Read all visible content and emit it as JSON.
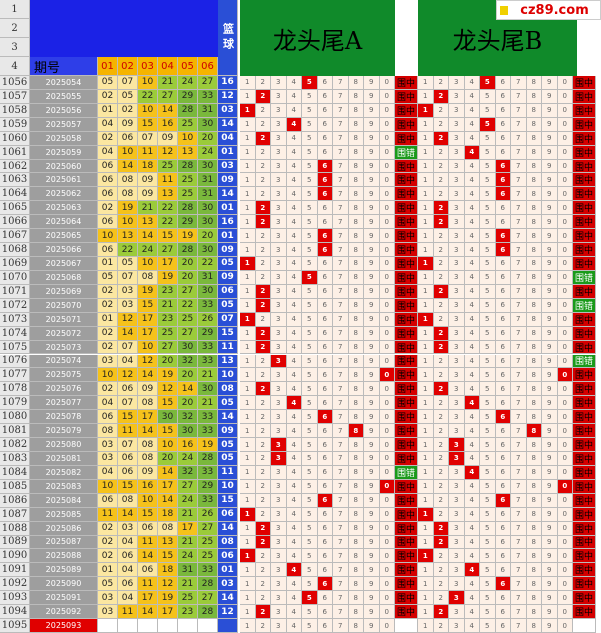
{
  "logo": "cz89.com",
  "top_rows": [
    "1",
    "2",
    "3",
    "4"
  ],
  "header": {
    "period_label": "期号",
    "number_labels": [
      "01",
      "02",
      "03",
      "04",
      "05",
      "06"
    ],
    "blue_label": "篮球",
    "section_a": "龙头尾A",
    "section_b": "龙头尾B"
  },
  "digits": [
    "1",
    "2",
    "3",
    "4",
    "5",
    "6",
    "7",
    "8",
    "9",
    "0"
  ],
  "rows": [
    [
      "1056",
      "2025054",
      [
        "05",
        "07",
        "10",
        "21",
        "24",
        "27"
      ],
      "16",
      "5",
      "围中",
      "5",
      "围中"
    ],
    [
      "1057",
      "2025055",
      [
        "02",
        "05",
        "22",
        "27",
        "29",
        "33"
      ],
      "12",
      "2",
      "围中",
      "2",
      "围中"
    ],
    [
      "1058",
      "2025056",
      [
        "01",
        "02",
        "10",
        "14",
        "28",
        "31"
      ],
      "03",
      "1",
      "围中",
      "1",
      "围中"
    ],
    [
      "1059",
      "2025057",
      [
        "04",
        "09",
        "15",
        "16",
        "25",
        "30"
      ],
      "14",
      "4",
      "围中",
      "5",
      "围中"
    ],
    [
      "1060",
      "2025058",
      [
        "02",
        "06",
        "07",
        "09",
        "10",
        "20"
      ],
      "04",
      "2",
      "围中",
      "2",
      "围中"
    ],
    [
      "1061",
      "2025059",
      [
        "04",
        "10",
        "11",
        "12",
        "13",
        "24"
      ],
      "01",
      null,
      "围错",
      "4",
      "围中"
    ],
    [
      "1062",
      "2025060",
      [
        "06",
        "14",
        "18",
        "25",
        "28",
        "30"
      ],
      "03",
      "6",
      "围中",
      "6",
      "围中"
    ],
    [
      "1063",
      "2025061",
      [
        "06",
        "08",
        "09",
        "11",
        "25",
        "31"
      ],
      "09",
      "6",
      "围中",
      "6",
      "围中"
    ],
    [
      "1064",
      "2025062",
      [
        "06",
        "08",
        "09",
        "13",
        "25",
        "31"
      ],
      "14",
      "6",
      "围中",
      "6",
      "围中"
    ],
    [
      "1065",
      "2025063",
      [
        "02",
        "19",
        "21",
        "22",
        "28",
        "30"
      ],
      "01",
      "2",
      "围中",
      "2",
      "围中"
    ],
    [
      "1066",
      "2025064",
      [
        "06",
        "10",
        "13",
        "22",
        "29",
        "30"
      ],
      "16",
      "2",
      "围中",
      "2",
      "围中"
    ],
    [
      "1067",
      "2025065",
      [
        "10",
        "13",
        "14",
        "15",
        "19",
        "20"
      ],
      "01",
      "6",
      "围中",
      "6",
      "围中"
    ],
    [
      "1068",
      "2025066",
      [
        "06",
        "22",
        "24",
        "27",
        "28",
        "30"
      ],
      "09",
      "6",
      "围中",
      "6",
      "围中"
    ],
    [
      "1069",
      "2025067",
      [
        "01",
        "05",
        "10",
        "17",
        "20",
        "22"
      ],
      "05",
      "1",
      "围中",
      "1",
      "围中"
    ],
    [
      "1070",
      "2025068",
      [
        "05",
        "07",
        "08",
        "19",
        "20",
        "31"
      ],
      "09",
      "5",
      "围中",
      null,
      "围错"
    ],
    [
      "1071",
      "2025069",
      [
        "02",
        "03",
        "19",
        "23",
        "27",
        "30"
      ],
      "06",
      "2",
      "围中",
      "2",
      "围中"
    ],
    [
      "1072",
      "2025070",
      [
        "02",
        "03",
        "15",
        "21",
        "22",
        "33"
      ],
      "05",
      "2",
      "围中",
      null,
      "围错"
    ],
    [
      "1073",
      "2025071",
      [
        "01",
        "12",
        "17",
        "23",
        "25",
        "26"
      ],
      "07",
      "1",
      "围中",
      "1",
      "围中"
    ],
    [
      "1074",
      "2025072",
      [
        "02",
        "14",
        "17",
        "25",
        "27",
        "29"
      ],
      "15",
      "2",
      "围中",
      "2",
      "围中"
    ],
    [
      "1075",
      "2025073",
      [
        "02",
        "07",
        "10",
        "27",
        "30",
        "33"
      ],
      "11",
      "2",
      "围中",
      "2",
      "围中"
    ],
    [
      "1076",
      "2025074",
      [
        "03",
        "04",
        "12",
        "20",
        "32",
        "33"
      ],
      "13",
      "3",
      "围中",
      null,
      "围错"
    ],
    [
      "1077",
      "2025075",
      [
        "10",
        "12",
        "14",
        "19",
        "20",
        "21"
      ],
      "10",
      "0",
      "围中",
      "0",
      "围中"
    ],
    [
      "1078",
      "2025076",
      [
        "02",
        "06",
        "09",
        "12",
        "14",
        "30"
      ],
      "08",
      "2",
      "围中",
      "2",
      "围中"
    ],
    [
      "1079",
      "2025077",
      [
        "04",
        "07",
        "08",
        "15",
        "20",
        "21"
      ],
      "05",
      "4",
      "围中",
      "4",
      "围中"
    ],
    [
      "1080",
      "2025078",
      [
        "06",
        "15",
        "17",
        "30",
        "32",
        "33"
      ],
      "14",
      "6",
      "围中",
      "6",
      "围中"
    ],
    [
      "1081",
      "2025079",
      [
        "08",
        "11",
        "14",
        "15",
        "30",
        "33"
      ],
      "09",
      "8",
      "围中",
      "8",
      "围中"
    ],
    [
      "1082",
      "2025080",
      [
        "03",
        "07",
        "08",
        "10",
        "16",
        "19"
      ],
      "05",
      "3",
      "围中",
      "3",
      "围中"
    ],
    [
      "1083",
      "2025081",
      [
        "03",
        "06",
        "08",
        "20",
        "24",
        "28"
      ],
      "05",
      "3",
      "围中",
      "3",
      "围中"
    ],
    [
      "1084",
      "2025082",
      [
        "04",
        "06",
        "09",
        "14",
        "32",
        "33"
      ],
      "11",
      null,
      "围错",
      "4",
      "围中"
    ],
    [
      "1085",
      "2025083",
      [
        "10",
        "15",
        "16",
        "17",
        "27",
        "29"
      ],
      "10",
      "0",
      "围中",
      "0",
      "围中"
    ],
    [
      "1086",
      "2025084",
      [
        "06",
        "08",
        "10",
        "14",
        "24",
        "33"
      ],
      "15",
      "6",
      "围中",
      "6",
      "围中"
    ],
    [
      "1087",
      "2025085",
      [
        "11",
        "14",
        "15",
        "18",
        "21",
        "26"
      ],
      "06",
      "1",
      "围中",
      "1",
      "围中"
    ],
    [
      "1088",
      "2025086",
      [
        "02",
        "03",
        "06",
        "08",
        "17",
        "27"
      ],
      "14",
      "2",
      "围中",
      "2",
      "围中"
    ],
    [
      "1089",
      "2025087",
      [
        "02",
        "04",
        "11",
        "13",
        "21",
        "25"
      ],
      "08",
      "2",
      "围中",
      "2",
      "围中"
    ],
    [
      "1090",
      "2025088",
      [
        "02",
        "06",
        "14",
        "15",
        "24",
        "25"
      ],
      "06",
      "1",
      "围中",
      "1",
      "围中"
    ],
    [
      "1091",
      "2025089",
      [
        "01",
        "04",
        "06",
        "18",
        "31",
        "33"
      ],
      "01",
      "4",
      "围中",
      "4",
      "围中"
    ],
    [
      "1092",
      "2025090",
      [
        "05",
        "06",
        "11",
        "12",
        "21",
        "28"
      ],
      "03",
      "6",
      "围中",
      "6",
      "围中"
    ],
    [
      "1093",
      "2025091",
      [
        "03",
        "04",
        "17",
        "19",
        "25",
        "27"
      ],
      "14",
      "5",
      "围中",
      "3",
      "围中"
    ],
    [
      "1094",
      "2025092",
      [
        "03",
        "11",
        "14",
        "17",
        "23",
        "28"
      ],
      "12",
      "2",
      "围中",
      "2",
      "围中"
    ],
    [
      "1095",
      "2025093",
      null,
      null,
      null,
      null,
      null,
      null
    ]
  ]
}
